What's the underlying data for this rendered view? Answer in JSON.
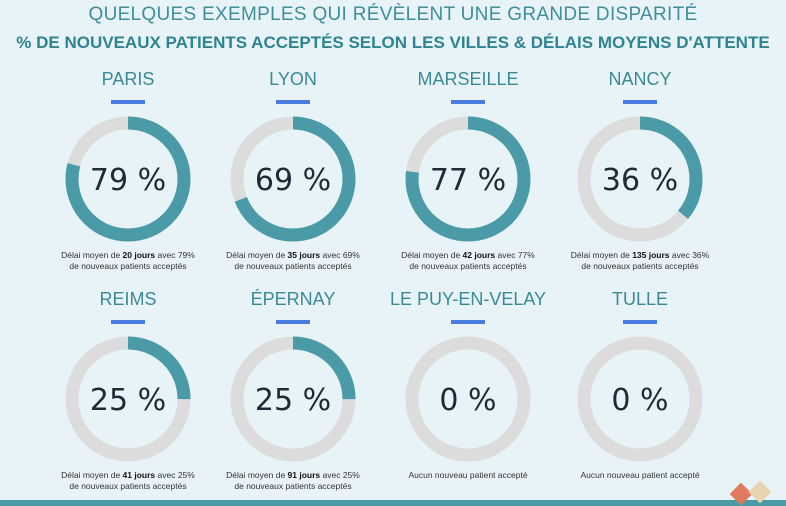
{
  "header": {
    "subtitle": "QUELQUES EXEMPLES QUI RÉVÈLENT UNE GRANDE DISPARITÉ",
    "title": "% DE NOUVEAUX PATIENTS ACCEPTÉS SELON LES VILLES & DÉLAIS MOYENS D'ATTENTE"
  },
  "colors": {
    "fill": "#4a9aa8",
    "track": "#dcdcdc",
    "accent": "#4a7be0"
  },
  "chart_data": {
    "type": "donut",
    "title": "% DE NOUVEAUX PATIENTS ACCEPTÉS SELON LES VILLES & DÉLAIS MOYENS D'ATTENTE",
    "unit": "%",
    "items": [
      {
        "city": "PARIS",
        "value": 79,
        "label": "79 %",
        "cap_pre": "Délai moyen de ",
        "days": "20 jours",
        "cap_post": " avec 79%",
        "cap_line2": "de nouveaux patients acceptés"
      },
      {
        "city": "LYON",
        "value": 69,
        "label": "69 %",
        "cap_pre": "Délai moyen de ",
        "days": "35 jours",
        "cap_post": " avec 69%",
        "cap_line2": "de nouveaux patients acceptés"
      },
      {
        "city": "MARSEILLE",
        "value": 77,
        "label": "77 %",
        "cap_pre": "Délai moyen de ",
        "days": "42 jours",
        "cap_post": " avec 77%",
        "cap_line2": "de nouveaux patients acceptés"
      },
      {
        "city": "NANCY",
        "value": 36,
        "label": "36 %",
        "cap_pre": "Délai moyen de ",
        "days": "135 jours",
        "cap_post": " avec 36%",
        "cap_line2": "de nouveaux patients acceptés"
      },
      {
        "city": "REIMS",
        "value": 25,
        "label": "25 %",
        "cap_pre": "Délai moyen de ",
        "days": "41 jours",
        "cap_post": " avec 25%",
        "cap_line2": "de nouveaux patients acceptés"
      },
      {
        "city": "ÉPERNAY",
        "value": 25,
        "label": "25 %",
        "cap_pre": "Délai moyen de ",
        "days": "91 jours",
        "cap_post": " avec 25%",
        "cap_line2": "de nouveaux patients acceptés"
      },
      {
        "city": "LE PUY-EN-VELAY",
        "value": 0,
        "label": "0 %",
        "cap_pre": "Aucun nouveau patient accepté",
        "days": "",
        "cap_post": "",
        "cap_line2": ""
      },
      {
        "city": "TULLE",
        "value": 0,
        "label": "0 %",
        "cap_pre": "Aucun nouveau patient accepté",
        "days": "",
        "cap_post": "",
        "cap_line2": ""
      }
    ]
  }
}
